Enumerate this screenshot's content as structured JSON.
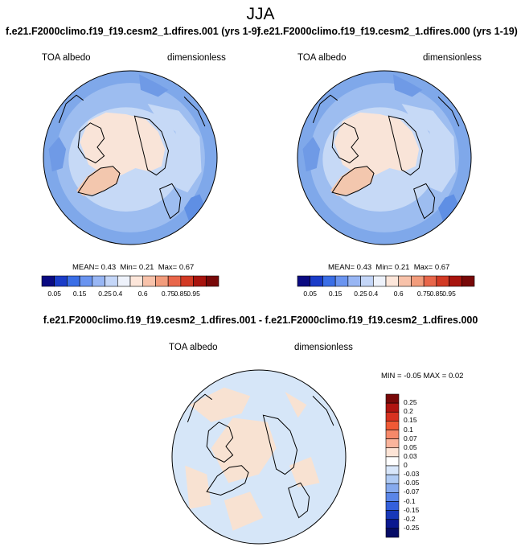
{
  "figure": {
    "season": "JJA"
  },
  "panels": [
    {
      "title": "f.e21.F2000climo.f19_f19.cesm2_1.dfires.001 (yrs 1-9)",
      "variable": "TOA albedo",
      "units": "dimensionless",
      "stats": {
        "mean_label": "MEAN=",
        "mean": "0.43",
        "min_label": "Min=",
        "min": "0.21",
        "max_label": "Max=",
        "max": "0.67"
      }
    },
    {
      "title": "f.e21.F2000climo.f19_f19.cesm2_1.dfires.000 (yrs 1-19)",
      "variable": "TOA albedo",
      "units": "dimensionless",
      "stats": {
        "mean_label": "MEAN=",
        "mean": "0.43",
        "min_label": "Min=",
        "min": "0.21",
        "max_label": "Max=",
        "max": "0.67"
      }
    },
    {
      "title": "f.e21.F2000climo.f19_f19.cesm2_1.dfires.001 - f.e21.F2000climo.f19_f19.cesm2_1.dfires.000",
      "variable": "TOA albedo",
      "units": "dimensionless",
      "stats": {
        "min_label": "MIN =",
        "min": "-0.05",
        "max_label": "MAX =",
        "max": "0.02"
      }
    }
  ],
  "colorbars": {
    "abs": {
      "colors": [
        "#0a0a82",
        "#1a3cc8",
        "#3a6ee6",
        "#6a94f0",
        "#98b6f4",
        "#c4d6f8",
        "#eef2fb",
        "#fde6da",
        "#f8c2aa",
        "#f29c7c",
        "#e8664a",
        "#d23a24",
        "#a8140e",
        "#780808"
      ],
      "labels": [
        "0.05",
        "0.15",
        "0.25",
        "0.4",
        "0.6",
        "0.75",
        "0.85",
        "0.95"
      ]
    },
    "diff": {
      "colors": [
        "#780808",
        "#b01410",
        "#d83220",
        "#f05a36",
        "#f6896a",
        "#fab49c",
        "#fde4d6",
        "#ffffff",
        "#d8e6fa",
        "#b0cbf4",
        "#86aaee",
        "#5a86e8",
        "#3460dc",
        "#1838b8",
        "#0a1890",
        "#060c66"
      ],
      "labels": [
        "0.25",
        "0.2",
        "0.15",
        "0.1",
        "0.07",
        "0.05",
        "0.03",
        "0",
        "-0.03",
        "-0.05",
        "-0.07",
        "-0.1",
        "-0.15",
        "-0.2",
        "-0.25"
      ]
    }
  },
  "colors": {
    "ocean_light": "#c6d9f6",
    "ocean_mid": "#9dbdf0",
    "ocean_dark": "#7fa8ea",
    "arctic_warm": "#f9e4d8",
    "greenland": "#f3c7ae",
    "diff_base": "#d6e6f8",
    "diff_pos": "#f8e2d2",
    "coast": "#000000"
  }
}
